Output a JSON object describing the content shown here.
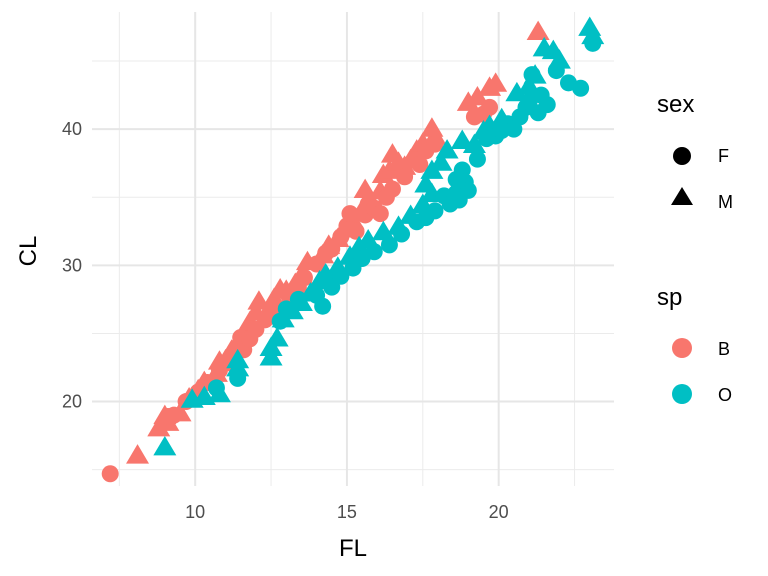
{
  "chart_data": {
    "type": "scatter",
    "title": "",
    "xlabel": "FL",
    "ylabel": "CL",
    "xlim": [
      6.6,
      23.8
    ],
    "ylim": [
      13.8,
      48.6
    ],
    "x_ticks": [
      10,
      15,
      20
    ],
    "y_ticks": [
      20,
      30,
      40
    ],
    "x_tick_labels": [
      "10",
      "15",
      "20"
    ],
    "y_tick_labels": [
      "20",
      "30",
      "40"
    ],
    "grid": true,
    "legend_position": "right",
    "legends": [
      {
        "title": "sex",
        "entries": [
          {
            "label": "F",
            "shape": "circle"
          },
          {
            "label": "M",
            "shape": "triangle"
          }
        ]
      },
      {
        "title": "sp",
        "entries": [
          {
            "label": "B",
            "color": "#F8766D"
          },
          {
            "label": "O",
            "color": "#00BFC4"
          }
        ]
      }
    ],
    "series": [
      {
        "sp": "B",
        "sex": "M",
        "color": "#F8766D",
        "shape": "triangle",
        "points": [
          [
            8.1,
            16.1
          ],
          [
            8.8,
            18.1
          ],
          [
            9.0,
            19.0
          ],
          [
            9.1,
            18.5
          ],
          [
            9.5,
            19.2
          ],
          [
            9.8,
            20.3
          ],
          [
            10.1,
            20.9
          ],
          [
            10.3,
            21.5
          ],
          [
            10.7,
            22.1
          ],
          [
            10.8,
            23.0
          ],
          [
            11.0,
            23.1
          ],
          [
            11.2,
            23.8
          ],
          [
            11.4,
            24.4
          ],
          [
            11.6,
            25.0
          ],
          [
            11.8,
            25.9
          ],
          [
            12.0,
            26.6
          ],
          [
            12.1,
            27.4
          ],
          [
            12.4,
            26.7
          ],
          [
            12.6,
            27.6
          ],
          [
            12.8,
            28.3
          ],
          [
            13.0,
            28.2
          ],
          [
            13.3,
            28.7
          ],
          [
            13.5,
            29.3
          ],
          [
            13.7,
            30.3
          ],
          [
            14.2,
            30.8
          ],
          [
            14.4,
            31.5
          ],
          [
            14.7,
            32.0
          ],
          [
            14.9,
            32.7
          ],
          [
            15.2,
            33.3
          ],
          [
            15.5,
            34.1
          ],
          [
            15.6,
            35.6
          ],
          [
            15.8,
            34.7
          ],
          [
            16.1,
            35.5
          ],
          [
            16.2,
            36.7
          ],
          [
            16.4,
            37.0
          ],
          [
            16.5,
            38.2
          ],
          [
            16.7,
            37.6
          ],
          [
            16.9,
            37.3
          ],
          [
            17.1,
            37.8
          ],
          [
            17.3,
            38.5
          ],
          [
            17.5,
            39.0
          ],
          [
            17.9,
            39.5
          ],
          [
            17.8,
            40.1
          ],
          [
            19.0,
            42.0
          ],
          [
            19.3,
            42.4
          ],
          [
            19.7,
            43.1
          ],
          [
            19.9,
            43.4
          ],
          [
            21.3,
            47.2
          ]
        ]
      },
      {
        "sp": "B",
        "sex": "F",
        "color": "#F8766D",
        "shape": "circle",
        "points": [
          [
            7.2,
            14.7
          ],
          [
            9.1,
            18.9
          ],
          [
            9.3,
            19.0
          ],
          [
            9.7,
            20.0
          ],
          [
            10.1,
            20.7
          ],
          [
            10.4,
            21.4
          ],
          [
            10.6,
            21.3
          ],
          [
            10.8,
            22.3
          ],
          [
            11.2,
            22.8
          ],
          [
            11.5,
            24.7
          ],
          [
            11.6,
            23.8
          ],
          [
            11.8,
            24.6
          ],
          [
            12.0,
            25.3
          ],
          [
            12.3,
            26.0
          ],
          [
            12.6,
            26.9
          ],
          [
            13.1,
            27.7
          ],
          [
            13.4,
            28.4
          ],
          [
            13.6,
            29.1
          ],
          [
            14.0,
            30.1
          ],
          [
            14.3,
            30.9
          ],
          [
            14.5,
            31.2
          ],
          [
            14.8,
            32.1
          ],
          [
            15.0,
            32.9
          ],
          [
            15.1,
            33.8
          ],
          [
            15.3,
            32.5
          ],
          [
            15.6,
            33.7
          ],
          [
            15.7,
            34.5
          ],
          [
            15.9,
            34.2
          ],
          [
            16.1,
            33.8
          ],
          [
            16.3,
            35.0
          ],
          [
            16.5,
            35.6
          ],
          [
            16.9,
            36.5
          ],
          [
            17.4,
            37.4
          ],
          [
            17.6,
            38.4
          ],
          [
            17.9,
            38.9
          ],
          [
            19.2,
            40.9
          ],
          [
            19.5,
            41.1
          ],
          [
            19.7,
            41.6
          ]
        ]
      },
      {
        "sp": "O",
        "sex": "M",
        "color": "#00BFC4",
        "shape": "triangle",
        "points": [
          [
            9.0,
            16.7
          ],
          [
            9.9,
            20.2
          ],
          [
            10.3,
            20.4
          ],
          [
            10.8,
            20.6
          ],
          [
            11.4,
            22.5
          ],
          [
            11.4,
            23.1
          ],
          [
            12.5,
            24.0
          ],
          [
            12.5,
            23.3
          ],
          [
            12.7,
            24.7
          ],
          [
            12.9,
            26.1
          ],
          [
            13.2,
            26.7
          ],
          [
            13.5,
            27.3
          ],
          [
            13.8,
            28.0
          ],
          [
            14.1,
            28.9
          ],
          [
            14.3,
            29.4
          ],
          [
            14.7,
            29.9
          ],
          [
            15.1,
            30.7
          ],
          [
            15.4,
            31.4
          ],
          [
            15.7,
            31.9
          ],
          [
            16.2,
            32.5
          ],
          [
            16.7,
            32.9
          ],
          [
            17.1,
            33.7
          ],
          [
            17.5,
            34.5
          ],
          [
            17.8,
            35.3
          ],
          [
            17.6,
            36.0
          ],
          [
            17.8,
            37.0
          ],
          [
            18.1,
            37.6
          ],
          [
            18.3,
            38.5
          ],
          [
            18.8,
            39.2
          ],
          [
            19.2,
            38.9
          ],
          [
            19.5,
            39.9
          ],
          [
            19.7,
            40.3
          ],
          [
            20.1,
            40.8
          ],
          [
            20.6,
            42.7
          ],
          [
            21.0,
            43.2
          ],
          [
            21.2,
            44.0
          ],
          [
            21.5,
            46.0
          ],
          [
            21.8,
            45.8
          ],
          [
            22.0,
            45.1
          ],
          [
            23.0,
            47.5
          ],
          [
            23.1,
            46.9
          ]
        ]
      },
      {
        "sp": "O",
        "sex": "F",
        "color": "#00BFC4",
        "shape": "circle",
        "points": [
          [
            10.7,
            21.0
          ],
          [
            11.4,
            21.7
          ],
          [
            12.8,
            25.9
          ],
          [
            13.0,
            26.8
          ],
          [
            13.4,
            27.5
          ],
          [
            14.0,
            27.8
          ],
          [
            14.2,
            27.0
          ],
          [
            14.5,
            28.4
          ],
          [
            14.8,
            29.2
          ],
          [
            15.2,
            29.8
          ],
          [
            15.5,
            30.5
          ],
          [
            15.9,
            31.0
          ],
          [
            16.4,
            31.5
          ],
          [
            16.8,
            32.3
          ],
          [
            17.3,
            33.2
          ],
          [
            17.6,
            33.5
          ],
          [
            17.9,
            34.0
          ],
          [
            18.2,
            35.1
          ],
          [
            18.4,
            34.5
          ],
          [
            18.6,
            35.3
          ],
          [
            18.7,
            34.8
          ],
          [
            18.6,
            36.3
          ],
          [
            18.8,
            37.0
          ],
          [
            18.9,
            36.1
          ],
          [
            19.0,
            35.5
          ],
          [
            19.3,
            37.8
          ],
          [
            19.6,
            39.3
          ],
          [
            19.9,
            39.5
          ],
          [
            20.1,
            39.9
          ],
          [
            20.3,
            40.4
          ],
          [
            20.5,
            40.0
          ],
          [
            20.7,
            40.9
          ],
          [
            20.9,
            41.6
          ],
          [
            21.0,
            42.0
          ],
          [
            21.3,
            41.2
          ],
          [
            21.4,
            42.5
          ],
          [
            21.6,
            41.8
          ],
          [
            21.9,
            44.3
          ],
          [
            22.3,
            43.4
          ],
          [
            22.7,
            43.0
          ],
          [
            23.1,
            46.3
          ],
          [
            21.1,
            44.0
          ]
        ]
      }
    ]
  }
}
